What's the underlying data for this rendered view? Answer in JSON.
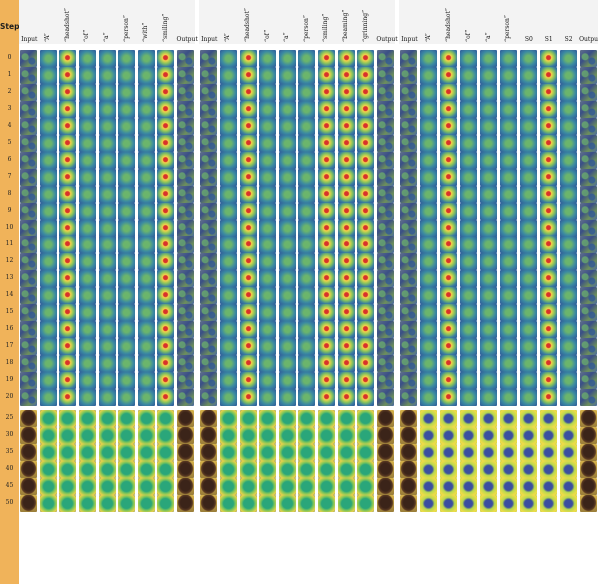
{
  "step_header": "Step",
  "steps": [
    "0",
    "1",
    "2",
    "3",
    "4",
    "5",
    "6",
    "7",
    "8",
    "9",
    "10",
    "11",
    "12",
    "13",
    "14",
    "15",
    "16",
    "17",
    "18",
    "19",
    "20",
    "25",
    "30",
    "35",
    "40",
    "45",
    "50"
  ],
  "panels": [
    {
      "columns": [
        "Input",
        "“A”",
        "“headshot”",
        "“of”",
        "“a”",
        "“person”",
        "“with”",
        "“smiling”",
        "Output"
      ]
    },
    {
      "columns": [
        "Input",
        "“A”",
        "“headshot”",
        "“of”",
        "“a”",
        "“person”",
        "“smiling”",
        "“beaming”",
        "“grinning”",
        "Output"
      ]
    },
    {
      "columns": [
        "Input",
        "“A”",
        "“headshot”",
        "“of”",
        "“a”",
        "“person”",
        "S0",
        "S1",
        "S2",
        "Output"
      ]
    }
  ]
}
